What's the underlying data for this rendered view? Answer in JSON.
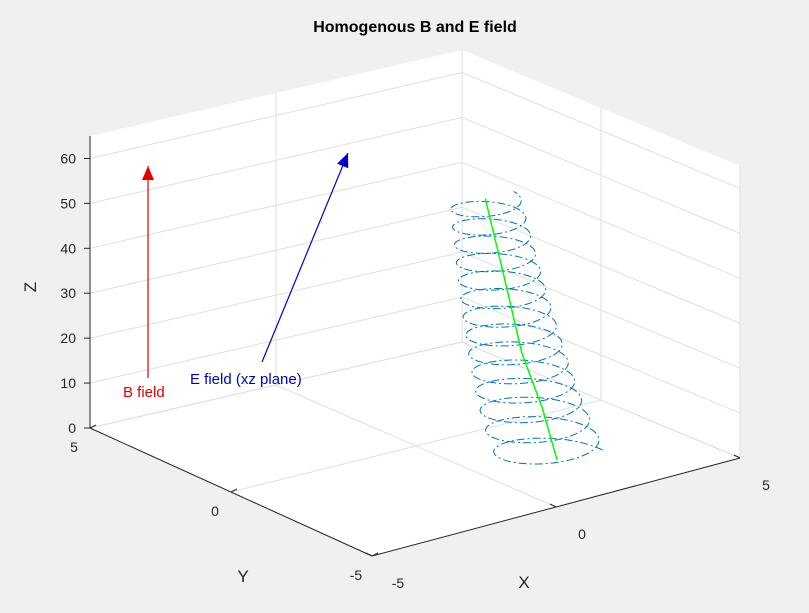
{
  "chart_data": {
    "type": "line3d",
    "title": "Homogenous B and E field",
    "xlabel": "X",
    "ylabel": "Y",
    "zlabel": "Z",
    "xlim": [
      -5,
      5
    ],
    "ylim": [
      -5,
      5
    ],
    "zlim": [
      0,
      65
    ],
    "xticks": [
      "-5",
      "0",
      "5"
    ],
    "yticks": [
      "-5",
      "0",
      "5"
    ],
    "zticks": [
      "0",
      "10",
      "20",
      "30",
      "40",
      "50",
      "60"
    ],
    "grid": true,
    "background": "#f0f0f0",
    "axes_color": "#ffffff",
    "annotations": [
      {
        "text": "B field",
        "color": "#e60000",
        "arrow_from": [
          -5,
          5,
          10
        ],
        "arrow_to": [
          -5,
          5,
          62
        ]
      },
      {
        "text": "E field (xz plane)",
        "color": "#0000cc",
        "arrow_from": [
          -2.9,
          5,
          10
        ],
        "arrow_to": [
          0,
          5,
          62
        ]
      }
    ],
    "series": [
      {
        "color": "#0072bd",
        "style": "dashdot",
        "x_center": [
          1.8,
          2.1
        ],
        "y_center": [
          -2.7,
          0.3
        ],
        "z_range": [
          0,
          50
        ],
        "radius": 0.9,
        "turns": 14
      },
      {
        "color": "#00ff00",
        "style": "solid",
        "x": [
          1.85,
          1.9,
          1.95,
          2.0,
          2.1
        ],
        "y": [
          -2.6,
          -2.0,
          -1.2,
          -0.5,
          0.3
        ],
        "z": [
          0,
          10,
          20,
          35,
          50
        ]
      }
    ]
  }
}
